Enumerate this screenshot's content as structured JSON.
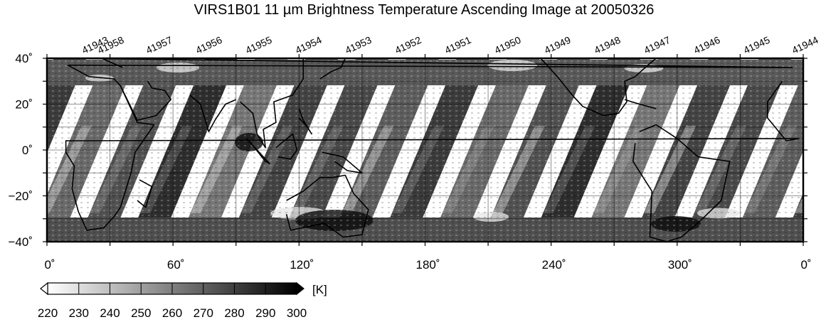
{
  "title": "VIRS1B01 11 µm Brightness Temperature Ascending Image at 20050326",
  "map": {
    "lon_ticks": [
      "0˚",
      "60˚",
      "120˚",
      "180˚",
      "240˚",
      "300˚",
      "0˚"
    ],
    "lat_ticks": [
      "40˚",
      "20˚",
      "0˚",
      "−20˚",
      "−40˚"
    ],
    "lon_range": [
      0,
      360
    ],
    "lat_range": [
      -40,
      40
    ],
    "grid": true,
    "grid_spacing_deg": 30,
    "orbit_numbers": [
      "41943",
      "41958",
      "41957",
      "41956",
      "41955",
      "41954",
      "41953",
      "41952",
      "41951",
      "41950",
      "41949",
      "41948",
      "41947",
      "41946",
      "41945",
      "41944"
    ]
  },
  "colorbar": {
    "unit": "[K]",
    "ticks": [
      "220",
      "230",
      "240",
      "250",
      "260",
      "270",
      "280",
      "290",
      "300"
    ],
    "min": 220,
    "max": 300,
    "colormap": "white-to-black"
  }
}
